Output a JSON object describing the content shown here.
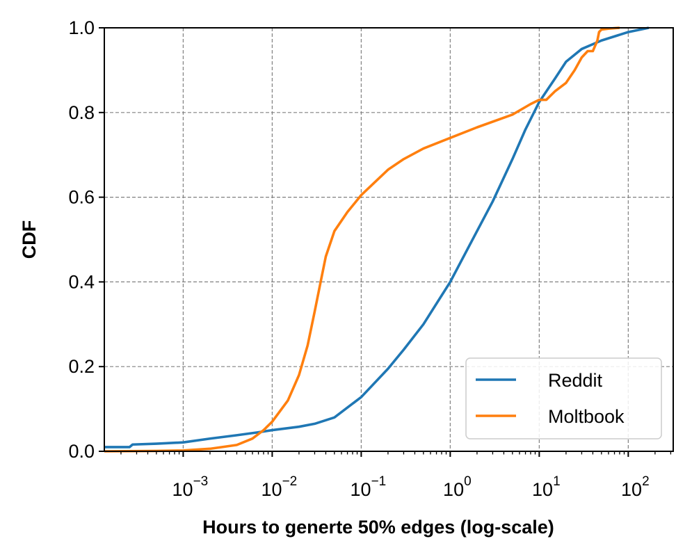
{
  "chart_data": {
    "type": "line",
    "xlabel": "Hours to generte 50% edges (log-scale)",
    "ylabel": "CDF",
    "xscale": "log",
    "xlim": [
      0.00013,
      320
    ],
    "ylim": [
      0,
      1
    ],
    "grid": true,
    "legend_position": "lower-right",
    "x_ticks": [
      {
        "value": 0.001,
        "base": "10",
        "exp": "−3"
      },
      {
        "value": 0.01,
        "base": "10",
        "exp": "−2"
      },
      {
        "value": 0.1,
        "base": "10",
        "exp": "−1"
      },
      {
        "value": 1,
        "base": "10",
        "exp": "0"
      },
      {
        "value": 10,
        "base": "10",
        "exp": "1"
      },
      {
        "value": 100,
        "base": "10",
        "exp": "2"
      }
    ],
    "y_ticks": [
      "0.0",
      "0.2",
      "0.4",
      "0.6",
      "0.8",
      "1.0"
    ],
    "series": [
      {
        "name": "Reddit",
        "color": "#1f77b4",
        "points": [
          [
            0.00013,
            0.01
          ],
          [
            0.00025,
            0.01
          ],
          [
            0.00027,
            0.016
          ],
          [
            0.0005,
            0.018
          ],
          [
            0.001,
            0.021
          ],
          [
            0.002,
            0.03
          ],
          [
            0.004,
            0.038
          ],
          [
            0.007,
            0.045
          ],
          [
            0.01,
            0.05
          ],
          [
            0.02,
            0.058
          ],
          [
            0.03,
            0.065
          ],
          [
            0.05,
            0.08
          ],
          [
            0.1,
            0.128
          ],
          [
            0.2,
            0.195
          ],
          [
            0.3,
            0.24
          ],
          [
            0.5,
            0.3
          ],
          [
            1.0,
            0.4
          ],
          [
            2.0,
            0.52
          ],
          [
            3.0,
            0.59
          ],
          [
            5.0,
            0.69
          ],
          [
            7.0,
            0.76
          ],
          [
            10.0,
            0.825
          ],
          [
            15.0,
            0.88
          ],
          [
            20.0,
            0.92
          ],
          [
            30.0,
            0.95
          ],
          [
            50.0,
            0.97
          ],
          [
            100.0,
            0.99
          ],
          [
            170.0,
            1.0
          ]
        ]
      },
      {
        "name": "Moltbook",
        "color": "#ff7f0e",
        "points": [
          [
            0.00013,
            0.0
          ],
          [
            0.0005,
            0.001
          ],
          [
            0.001,
            0.002
          ],
          [
            0.002,
            0.006
          ],
          [
            0.004,
            0.015
          ],
          [
            0.006,
            0.03
          ],
          [
            0.008,
            0.05
          ],
          [
            0.01,
            0.07
          ],
          [
            0.015,
            0.12
          ],
          [
            0.02,
            0.18
          ],
          [
            0.025,
            0.25
          ],
          [
            0.03,
            0.33
          ],
          [
            0.035,
            0.4
          ],
          [
            0.04,
            0.46
          ],
          [
            0.05,
            0.52
          ],
          [
            0.07,
            0.565
          ],
          [
            0.1,
            0.605
          ],
          [
            0.15,
            0.64
          ],
          [
            0.2,
            0.665
          ],
          [
            0.3,
            0.69
          ],
          [
            0.5,
            0.715
          ],
          [
            1.0,
            0.74
          ],
          [
            2.0,
            0.765
          ],
          [
            5.0,
            0.795
          ],
          [
            8.0,
            0.82
          ],
          [
            10.0,
            0.83
          ],
          [
            12.0,
            0.83
          ],
          [
            15.0,
            0.85
          ],
          [
            20.0,
            0.87
          ],
          [
            25.0,
            0.9
          ],
          [
            30.0,
            0.93
          ],
          [
            35.0,
            0.945
          ],
          [
            40.0,
            0.945
          ],
          [
            45.0,
            0.97
          ],
          [
            47.0,
            0.99
          ],
          [
            50.0,
            0.996
          ],
          [
            60.0,
            0.998
          ],
          [
            80.0,
            1.0
          ]
        ]
      }
    ]
  }
}
